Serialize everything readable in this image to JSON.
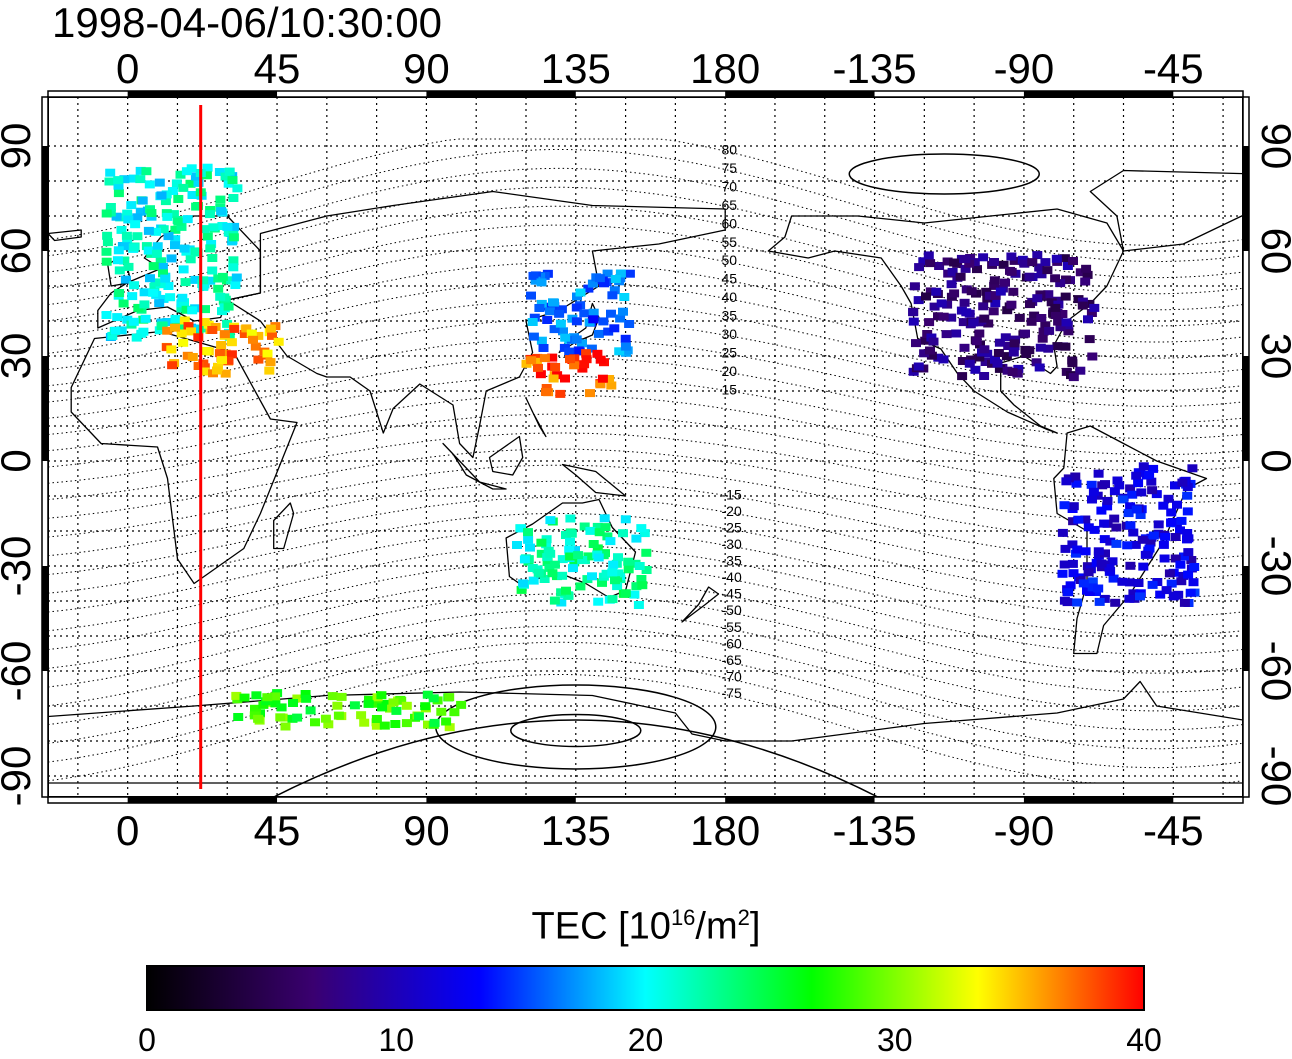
{
  "title": "1998-04-06/10:30:00",
  "lon_ticks": [
    {
      "value": 0,
      "label": "0"
    },
    {
      "value": 45,
      "label": "45"
    },
    {
      "value": 90,
      "label": "90"
    },
    {
      "value": 135,
      "label": "135"
    },
    {
      "value": 180,
      "label": "180"
    },
    {
      "value": 225,
      "label": "-135"
    },
    {
      "value": 270,
      "label": "-90"
    },
    {
      "value": 315,
      "label": "-45"
    }
  ],
  "lat_ticks": [
    {
      "value": 90,
      "label": "90"
    },
    {
      "value": 60,
      "label": "60"
    },
    {
      "value": 30,
      "label": "30"
    },
    {
      "value": 0,
      "label": "0"
    },
    {
      "value": -30,
      "label": "-30"
    },
    {
      "value": -60,
      "label": "-60"
    },
    {
      "value": -90,
      "label": "-90"
    }
  ],
  "map_extent": {
    "lon_min": -24,
    "lon_max": 336,
    "lat_min": -96,
    "lat_max": 104
  },
  "magnetic_lat_labels": [
    "80",
    "75",
    "70",
    "65",
    "60",
    "55",
    "50",
    "45",
    "40",
    "35",
    "30",
    "25",
    "20",
    "15",
    "-15",
    "-20",
    "-25",
    "-30",
    "-35",
    "-40",
    "-45",
    "-50",
    "-55",
    "-60",
    "-65",
    "-70",
    "-75"
  ],
  "meridian_marker": {
    "lon": 22,
    "color": "#ff0000"
  },
  "colorbar": {
    "label_main": "TEC  [10",
    "label_exp1": "16",
    "label_mid": "/m",
    "label_exp2": "2",
    "label_end": "]",
    "min": 0,
    "max": 40,
    "ticks": [
      "0",
      "10",
      "20",
      "30",
      "40"
    ],
    "stops": [
      "#000000",
      "#3a0070",
      "#0000ff",
      "#00ffff",
      "#00ff00",
      "#ffff00",
      "#ff0000"
    ]
  },
  "tec_observations": {
    "europe": {
      "lon": [
        -8,
        32
      ],
      "lat": [
        36,
        86
      ],
      "tec": 21
    },
    "mediterranean": {
      "lon": [
        10,
        45
      ],
      "lat": [
        26,
        42
      ],
      "tec": 36
    },
    "east_asia_north": {
      "lon": [
        120,
        150
      ],
      "lat": [
        32,
        55
      ],
      "tec": 16
    },
    "east_asia_south": {
      "lon": [
        118,
        145
      ],
      "lat": [
        20,
        32
      ],
      "tec": 38
    },
    "north_america": {
      "lon": [
        235,
        290
      ],
      "lat": [
        25,
        60
      ],
      "tec": 7
    },
    "south_america": {
      "lon": [
        280,
        320
      ],
      "lat": [
        -40,
        0
      ],
      "tec": 12
    },
    "australia": {
      "lon": [
        115,
        155
      ],
      "lat": [
        -40,
        -15
      ],
      "tec": 22
    },
    "antarctic_coast": {
      "lon": [
        30,
        100
      ],
      "lat": [
        -75,
        -65
      ],
      "tec": 28
    }
  }
}
